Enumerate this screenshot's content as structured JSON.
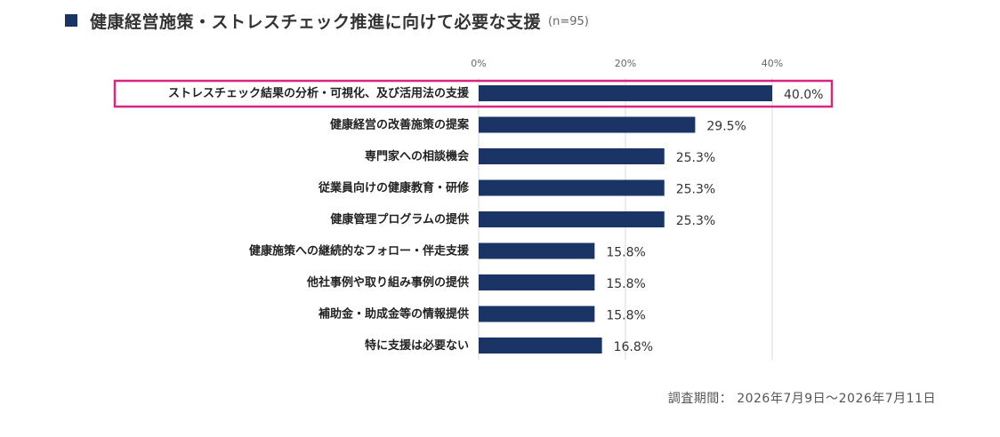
{
  "title": {
    "text": "健康経営施策・ストレスチェック推進に向けて必要な支援",
    "sample_size": "(n=95)"
  },
  "footer": {
    "survey_period": "調査期間： 2026年7月9日〜2026年7月11日"
  },
  "colors": {
    "bar": "#1a3466",
    "highlight_border": "#d6267f",
    "grid": "#d9d9d9",
    "title_marker": "#1a3466"
  },
  "chart_data": {
    "type": "bar",
    "orientation": "horizontal",
    "title": "健康経営施策・ストレスチェック推進に向けて必要な支援",
    "categories": [
      "ストレスチェック結果の分析・可視化、及び活用法の支援",
      "健康経営の改善施策の提案",
      "専門家への相談機会",
      "従業員向けの健康教育・研修",
      "健康管理プログラムの提供",
      "健康施策への継続的なフォロー・伴走支援",
      "他社事例や取り組み事例の提供",
      "補助金・助成金等の情報提供",
      "特に支援は必要ない"
    ],
    "values": [
      40.0,
      29.5,
      25.3,
      25.3,
      25.3,
      15.8,
      15.8,
      15.8,
      16.8
    ],
    "value_labels": [
      "40.0%",
      "29.5%",
      "25.3%",
      "25.3%",
      "25.3%",
      "15.8%",
      "15.8%",
      "15.8%",
      "16.8%"
    ],
    "xlim": [
      0,
      40
    ],
    "xticks": [
      0,
      20,
      40
    ],
    "xtick_labels": [
      "0%",
      "20%",
      "40%"
    ],
    "axis_position": "top",
    "grid": true,
    "highlighted_category_index": 0
  }
}
